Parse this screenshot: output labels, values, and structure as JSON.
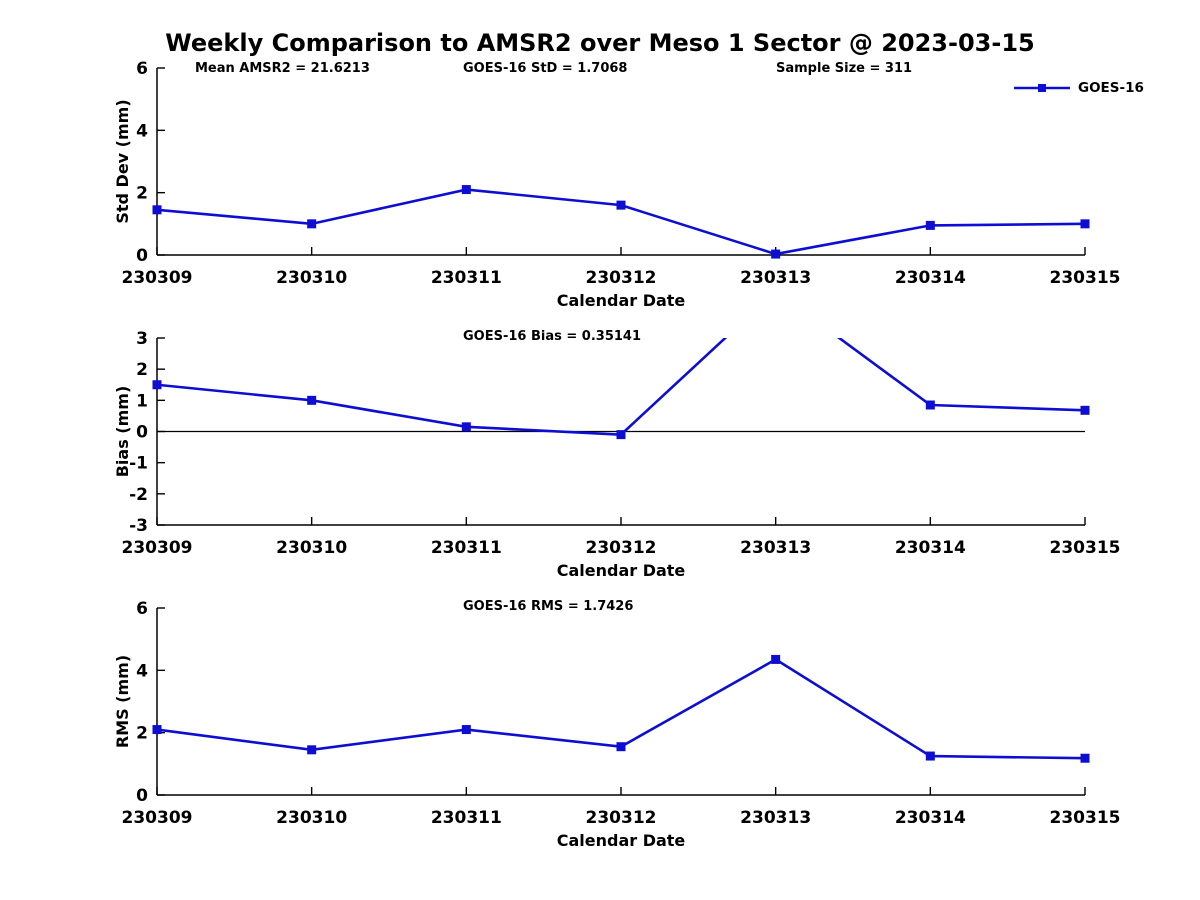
{
  "header": {
    "title": "Weekly Comparison to AMSR2 over Meso 1 Sector @ 2023-03-15"
  },
  "legend": {
    "label": "GOES-16"
  },
  "colors": {
    "line": "#0e0ed2",
    "axis": "#000000",
    "text": "#000000",
    "background": "#ffffff"
  },
  "chart_data": [
    {
      "type": "line",
      "name": "std-dev",
      "annotations": [
        "Mean AMSR2 = 21.6213",
        "GOES-16 StD = 1.7068",
        "Sample Size = 311"
      ],
      "categories": [
        "230309",
        "230310",
        "230311",
        "230312",
        "230313",
        "230314",
        "230315"
      ],
      "series": [
        {
          "name": "GOES-16",
          "values": [
            1.45,
            1.0,
            2.1,
            1.6,
            0.03,
            0.95,
            1.0
          ]
        }
      ],
      "xlabel": "Calendar Date",
      "ylabel": "Std Dev (mm)",
      "ylim": [
        0,
        6
      ],
      "yticks": [
        0,
        2,
        4,
        6
      ],
      "grid": false,
      "legend_position": "top-right",
      "zero_line": false
    },
    {
      "type": "line",
      "name": "bias",
      "annotations": [
        "GOES-16 Bias  = 0.35141"
      ],
      "categories": [
        "230309",
        "230310",
        "230311",
        "230312",
        "230313",
        "230314",
        "230315"
      ],
      "series": [
        {
          "name": "GOES-16",
          "values": [
            1.5,
            1.0,
            0.15,
            -0.1,
            4.5,
            0.85,
            0.68
          ]
        }
      ],
      "xlabel": "Calendar Date",
      "ylabel": "Bias (mm)",
      "ylim": [
        -3,
        3
      ],
      "yticks": [
        -3,
        -2,
        -1,
        0,
        1,
        2,
        3
      ],
      "grid": false,
      "zero_line": true
    },
    {
      "type": "line",
      "name": "rms",
      "annotations": [
        "GOES-16 RMS = 1.7426"
      ],
      "categories": [
        "230309",
        "230310",
        "230311",
        "230312",
        "230313",
        "230314",
        "230315"
      ],
      "series": [
        {
          "name": "GOES-16",
          "values": [
            2.1,
            1.45,
            2.1,
            1.55,
            4.35,
            1.25,
            1.18
          ]
        }
      ],
      "xlabel": "Calendar Date",
      "ylabel": "RMS (mm)",
      "ylim": [
        0,
        6
      ],
      "yticks": [
        0,
        2,
        4,
        6
      ],
      "grid": false,
      "zero_line": false
    }
  ]
}
